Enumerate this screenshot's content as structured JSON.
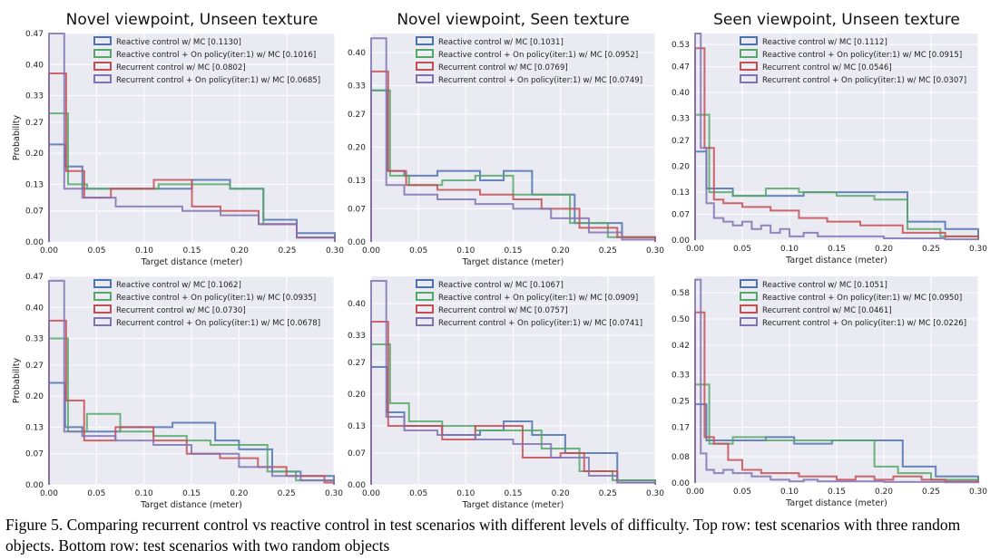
{
  "caption": "Figure 5. Comparing recurrent control vs reactive control in test scenarios with different levels of difficulty. Top row: test scenarios with three random objects. Bottom row: test scenarios with two random objects",
  "colors": {
    "reactive": "#4c72b0",
    "reactive_onpolicy": "#55a868",
    "recurrent": "#c44e52",
    "recurrent_onpolicy": "#8172b2",
    "plot_bg": "#eaeaf2",
    "grid": "#ffffff"
  },
  "chart_data": [
    {
      "type": "histogram",
      "title": "Novel viewpoint, Unseen texture",
      "xlabel": "Target distance (meter)",
      "ylabel": "Probability",
      "xlim": [
        0,
        0.3
      ],
      "ylim": [
        0,
        0.47
      ],
      "xticks": [
        "0.00",
        "0.05",
        "0.10",
        "0.15",
        "0.20",
        "0.25",
        "0.30"
      ],
      "yticks": [
        "0.00",
        "0.07",
        "0.13",
        "0.20",
        "0.27",
        "0.33",
        "0.40",
        "0.47"
      ],
      "legend_position": "top-center",
      "series": [
        {
          "name": "Reactive control w/ MC [0.1130]",
          "edges": [
            0,
            0.017,
            0.035,
            0.075,
            0.15,
            0.19,
            0.225,
            0.26,
            0.3
          ],
          "values": [
            0.22,
            0.17,
            0.12,
            0.12,
            0.14,
            0.12,
            0.05,
            0.02
          ]
        },
        {
          "name": "Reactive control + On policy(iter:1) w/ MC [0.1016]",
          "edges": [
            0,
            0.02,
            0.04,
            0.075,
            0.115,
            0.155,
            0.19,
            0.225,
            0.26,
            0.3
          ],
          "values": [
            0.29,
            0.13,
            0.12,
            0.12,
            0.13,
            0.13,
            0.12,
            0.04,
            0.01
          ]
        },
        {
          "name": "Recurrent control w/ MC [0.0802]",
          "edges": [
            0,
            0.018,
            0.037,
            0.065,
            0.11,
            0.15,
            0.18,
            0.22,
            0.26,
            0.3
          ],
          "values": [
            0.38,
            0.16,
            0.1,
            0.12,
            0.14,
            0.08,
            0.07,
            0.04,
            0.01
          ]
        },
        {
          "name": "Recurrent control + On policy(iter:1) w/ MC [0.0685]",
          "edges": [
            0,
            0.016,
            0.035,
            0.07,
            0.105,
            0.14,
            0.18,
            0.22,
            0.26,
            0.3
          ],
          "values": [
            0.47,
            0.12,
            0.1,
            0.08,
            0.08,
            0.07,
            0.06,
            0.04,
            0.01
          ]
        }
      ]
    },
    {
      "type": "histogram",
      "title": "Novel viewpoint, Seen texture",
      "xlabel": "Target distance (meter)",
      "ylabel": "",
      "xlim": [
        0,
        0.3
      ],
      "ylim": [
        0,
        0.44
      ],
      "xticks": [
        "0.00",
        "0.05",
        "0.10",
        "0.15",
        "0.20",
        "0.25",
        "0.30"
      ],
      "yticks": [
        "0.00",
        "0.07",
        "0.13",
        "0.20",
        "0.27",
        "0.33",
        "0.40"
      ],
      "legend_position": "top-center",
      "series": [
        {
          "name": "Reactive control w/ MC [0.1031]",
          "edges": [
            0,
            0.017,
            0.035,
            0.07,
            0.115,
            0.14,
            0.17,
            0.215,
            0.265,
            0.3
          ],
          "values": [
            0.32,
            0.15,
            0.14,
            0.15,
            0.13,
            0.15,
            0.1,
            0.04,
            0.01
          ]
        },
        {
          "name": "Reactive control + On policy(iter:1) w/ MC [0.0952]",
          "edges": [
            0,
            0.02,
            0.04,
            0.075,
            0.11,
            0.15,
            0.18,
            0.21,
            0.25,
            0.3
          ],
          "values": [
            0.32,
            0.14,
            0.12,
            0.13,
            0.14,
            0.1,
            0.1,
            0.04,
            0.01
          ]
        },
        {
          "name": "Recurrent control w/ MC [0.0769]",
          "edges": [
            0,
            0.018,
            0.037,
            0.07,
            0.115,
            0.15,
            0.18,
            0.22,
            0.26,
            0.3
          ],
          "values": [
            0.36,
            0.15,
            0.12,
            0.11,
            0.1,
            0.09,
            0.07,
            0.03,
            0.01
          ]
        },
        {
          "name": "Recurrent control + On policy(iter:1) w/ MC [0.0749]",
          "edges": [
            0,
            0.016,
            0.035,
            0.07,
            0.11,
            0.15,
            0.19,
            0.23,
            0.265,
            0.3
          ],
          "values": [
            0.43,
            0.12,
            0.1,
            0.09,
            0.08,
            0.07,
            0.05,
            0.02,
            0.005
          ]
        }
      ]
    },
    {
      "type": "histogram",
      "title": "Seen viewpoint, Unseen texture",
      "xlabel": "Target distance (meter)",
      "ylabel": "",
      "xlim": [
        0,
        0.3
      ],
      "ylim": [
        0,
        0.56
      ],
      "xticks": [
        "0.00",
        "0.05",
        "0.10",
        "0.15",
        "0.20",
        "0.25",
        "0.30"
      ],
      "yticks": [
        "0.00",
        "0.07",
        "0.13",
        "0.20",
        "0.27",
        "0.33",
        "0.40",
        "0.47",
        "0.53"
      ],
      "legend_position": "top-center",
      "series": [
        {
          "name": "Reactive control w/ MC [0.1112]",
          "edges": [
            0,
            0.012,
            0.04,
            0.075,
            0.115,
            0.15,
            0.19,
            0.225,
            0.265,
            0.3
          ],
          "values": [
            0.24,
            0.14,
            0.12,
            0.12,
            0.13,
            0.13,
            0.13,
            0.05,
            0.03
          ]
        },
        {
          "name": "Reactive control + On policy(iter:1) w/ MC [0.0915]",
          "edges": [
            0,
            0.015,
            0.04,
            0.075,
            0.11,
            0.15,
            0.19,
            0.225,
            0.26,
            0.3
          ],
          "values": [
            0.34,
            0.13,
            0.12,
            0.14,
            0.13,
            0.12,
            0.11,
            0.03,
            0.01
          ]
        },
        {
          "name": "Recurrent control w/ MC [0.0546]",
          "edges": [
            0,
            0.01,
            0.02,
            0.03,
            0.05,
            0.08,
            0.11,
            0.14,
            0.175,
            0.22,
            0.265,
            0.3
          ],
          "values": [
            0.52,
            0.25,
            0.11,
            0.1,
            0.09,
            0.08,
            0.06,
            0.05,
            0.04,
            0.02,
            0.01
          ]
        },
        {
          "name": "Recurrent control + On policy(iter:1) w/ MC [0.0307]",
          "edges": [
            0,
            0.006,
            0.012,
            0.02,
            0.03,
            0.04,
            0.05,
            0.06,
            0.07,
            0.08,
            0.09,
            0.1,
            0.115,
            0.13,
            0.15,
            0.17,
            0.2,
            0.23,
            0.265,
            0.3
          ],
          "values": [
            0.57,
            0.25,
            0.1,
            0.06,
            0.05,
            0.04,
            0.05,
            0.03,
            0.04,
            0.02,
            0.03,
            0.01,
            0.02,
            0.01,
            0.01,
            0.01,
            0.005,
            0.005,
            0.002
          ]
        }
      ]
    },
    {
      "type": "histogram",
      "title": "",
      "xlabel": "Target distance (meter)",
      "ylabel": "Probability",
      "xlim": [
        0,
        0.3
      ],
      "ylim": [
        0,
        0.47
      ],
      "xticks": [
        "0.00",
        "0.05",
        "0.10",
        "0.15",
        "0.20",
        "0.25",
        "0.30"
      ],
      "yticks": [
        "0.00",
        "0.07",
        "0.13",
        "0.20",
        "0.27",
        "0.33",
        "0.40",
        "0.47"
      ],
      "legend_position": "top-center",
      "series": [
        {
          "name": "Reactive control w/ MC [0.1062]",
          "edges": [
            0,
            0.017,
            0.035,
            0.075,
            0.13,
            0.175,
            0.2,
            0.235,
            0.265,
            0.3
          ],
          "values": [
            0.23,
            0.13,
            0.12,
            0.13,
            0.14,
            0.1,
            0.08,
            0.03,
            0.02
          ]
        },
        {
          "name": "Reactive control + On policy(iter:1) w/ MC [0.0935]",
          "edges": [
            0,
            0.02,
            0.04,
            0.075,
            0.11,
            0.145,
            0.17,
            0.23,
            0.26,
            0.3
          ],
          "values": [
            0.33,
            0.12,
            0.16,
            0.12,
            0.11,
            0.1,
            0.09,
            0.03,
            0.01
          ]
        },
        {
          "name": "Recurrent control w/ MC [0.0730]",
          "edges": [
            0,
            0.018,
            0.037,
            0.07,
            0.11,
            0.145,
            0.18,
            0.22,
            0.25,
            0.29,
            0.3
          ],
          "values": [
            0.37,
            0.19,
            0.1,
            0.13,
            0.1,
            0.07,
            0.06,
            0.04,
            0.02,
            0.005
          ]
        },
        {
          "name": "Recurrent control + On policy(iter:1) w/ MC [0.0678]",
          "edges": [
            0,
            0.016,
            0.035,
            0.07,
            0.11,
            0.15,
            0.2,
            0.235,
            0.265,
            0.3
          ],
          "values": [
            0.46,
            0.12,
            0.11,
            0.1,
            0.09,
            0.07,
            0.04,
            0.02,
            0.01
          ]
        }
      ]
    },
    {
      "type": "histogram",
      "title": "",
      "xlabel": "Target distance (meter)",
      "ylabel": "",
      "xlim": [
        0,
        0.3
      ],
      "ylim": [
        0,
        0.46
      ],
      "xticks": [
        "0.00",
        "0.05",
        "0.10",
        "0.15",
        "0.20",
        "0.25",
        "0.30"
      ],
      "yticks": [
        "0.00",
        "0.07",
        "0.13",
        "0.20",
        "0.27",
        "0.33",
        "0.40"
      ],
      "legend_position": "top-center",
      "series": [
        {
          "name": "Reactive control w/ MC [0.1067]",
          "edges": [
            0,
            0.017,
            0.035,
            0.075,
            0.115,
            0.14,
            0.17,
            0.205,
            0.26,
            0.3
          ],
          "values": [
            0.26,
            0.16,
            0.13,
            0.11,
            0.12,
            0.14,
            0.11,
            0.07,
            0.01
          ]
        },
        {
          "name": "Reactive control + On policy(iter:1) w/ MC [0.0909]",
          "edges": [
            0,
            0.02,
            0.04,
            0.075,
            0.11,
            0.15,
            0.18,
            0.22,
            0.255,
            0.3
          ],
          "values": [
            0.31,
            0.18,
            0.14,
            0.13,
            0.12,
            0.12,
            0.08,
            0.03,
            0.01
          ]
        },
        {
          "name": "Recurrent control w/ MC [0.0757]",
          "edges": [
            0,
            0.018,
            0.037,
            0.075,
            0.11,
            0.16,
            0.2,
            0.225,
            0.26,
            0.3
          ],
          "values": [
            0.36,
            0.13,
            0.13,
            0.1,
            0.13,
            0.06,
            0.07,
            0.03,
            0.005
          ]
        },
        {
          "name": "Recurrent control + On policy(iter:1) w/ MC [0.0741]",
          "edges": [
            0,
            0.016,
            0.035,
            0.07,
            0.11,
            0.15,
            0.19,
            0.23,
            0.26,
            0.3
          ],
          "values": [
            0.45,
            0.15,
            0.12,
            0.11,
            0.1,
            0.09,
            0.06,
            0.02,
            0.005
          ]
        }
      ]
    },
    {
      "type": "histogram",
      "title": "",
      "xlabel": "Target distance (meter)",
      "ylabel": "",
      "xlim": [
        0,
        0.3
      ],
      "ylim": [
        0,
        0.63
      ],
      "xticks": [
        "0.00",
        "0.05",
        "0.10",
        "0.15",
        "0.20",
        "0.25",
        "0.30"
      ],
      "yticks": [
        "0.00",
        "0.08",
        "0.17",
        "0.25",
        "0.33",
        "0.42",
        "0.50",
        "0.58"
      ],
      "legend_position": "top-center",
      "series": [
        {
          "name": "Reactive control w/ MC [0.1051]",
          "edges": [
            0,
            0.012,
            0.04,
            0.075,
            0.105,
            0.145,
            0.185,
            0.22,
            0.255,
            0.3
          ],
          "values": [
            0.24,
            0.13,
            0.13,
            0.14,
            0.12,
            0.13,
            0.13,
            0.05,
            0.02
          ]
        },
        {
          "name": "Reactive control + On policy(iter:1) w/ MC [0.0950]",
          "edges": [
            0,
            0.015,
            0.04,
            0.075,
            0.11,
            0.15,
            0.19,
            0.215,
            0.25,
            0.3
          ],
          "values": [
            0.3,
            0.12,
            0.14,
            0.13,
            0.13,
            0.13,
            0.05,
            0.03,
            0.01
          ]
        },
        {
          "name": "Recurrent control w/ MC [0.0461]",
          "edges": [
            0,
            0.01,
            0.02,
            0.035,
            0.05,
            0.07,
            0.09,
            0.11,
            0.13,
            0.15,
            0.17,
            0.19,
            0.21,
            0.24,
            0.265,
            0.3
          ],
          "values": [
            0.52,
            0.14,
            0.12,
            0.07,
            0.04,
            0.03,
            0.03,
            0.02,
            0.02,
            0.01,
            0.02,
            0.01,
            0.02,
            0.01,
            0.005
          ]
        },
        {
          "name": "Recurrent control + On policy(iter:1) w/ MC [0.0226]",
          "edges": [
            0,
            0.006,
            0.012,
            0.02,
            0.03,
            0.04,
            0.05,
            0.06,
            0.07,
            0.08,
            0.09,
            0.1,
            0.115,
            0.13,
            0.15,
            0.17,
            0.2,
            0.23,
            0.265,
            0.3
          ],
          "values": [
            0.62,
            0.09,
            0.04,
            0.03,
            0.04,
            0.03,
            0.03,
            0.02,
            0.02,
            0.01,
            0.01,
            0.005,
            0.01,
            0.005,
            0.005,
            0.005,
            0.003,
            0.003,
            0.002
          ]
        }
      ]
    }
  ]
}
